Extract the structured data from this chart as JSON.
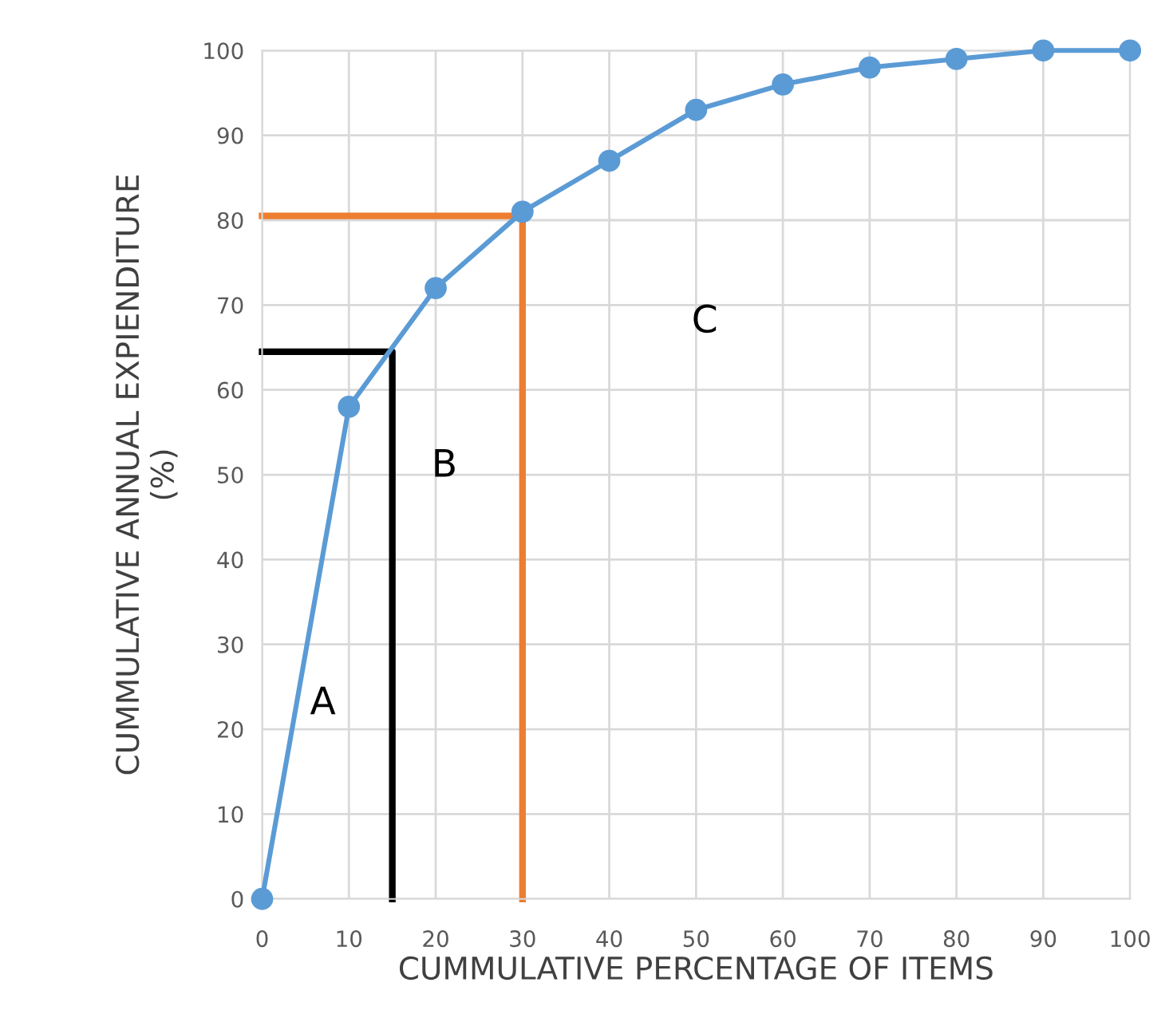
{
  "chart_data": {
    "type": "line",
    "xlabel": "CUMMULATIVE PERCENTAGE OF ITEMS",
    "ylabel": "CUMMULATIVE ANNUAL EXPIENDITURE\n(%)",
    "x": [
      0,
      10,
      20,
      30,
      40,
      50,
      60,
      70,
      80,
      90,
      100
    ],
    "series": [
      {
        "color": "#5b9bd5",
        "marker": "circle",
        "values": [
          0,
          58,
          72,
          81,
          87,
          93,
          96,
          98,
          99,
          100,
          100
        ]
      },
      {
        "color": "#000000",
        "marker": "none",
        "x": [
          0,
          15,
          15
        ],
        "values": [
          64.5,
          64.5,
          0
        ]
      },
      {
        "color": "#ed7d31",
        "marker": "none",
        "x": [
          0,
          30,
          30
        ],
        "values": [
          80.5,
          80.5,
          0
        ]
      }
    ],
    "xlim": [
      0,
      100
    ],
    "xticks": [
      0,
      10,
      20,
      30,
      40,
      50,
      60,
      70,
      80,
      90,
      100
    ],
    "ylim": [
      0,
      100
    ],
    "yticks": [
      0,
      10,
      20,
      30,
      40,
      50,
      60,
      70,
      80,
      90,
      100
    ],
    "grid": true,
    "annotations": [
      "A",
      "B",
      "C"
    ]
  }
}
